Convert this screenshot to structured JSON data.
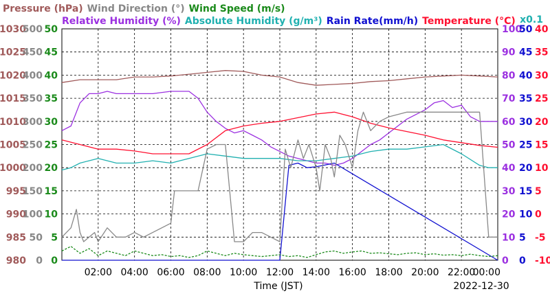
{
  "chart_data": {
    "type": "line",
    "title": "",
    "date_label": "2022-12-30",
    "xlabel": "Time (JST)",
    "x_ticks": [
      "02:00",
      "04:00",
      "06:00",
      "08:00",
      "10:00",
      "12:00",
      "14:00",
      "16:00",
      "18:00",
      "20:00",
      "22:00",
      "00:00"
    ],
    "x_range_hours": [
      0,
      24
    ],
    "grid": true,
    "legend_row1": [
      {
        "text": "Pressure (hPa)",
        "color": "#a05a5a"
      },
      {
        "text": "Wind Direction (°)",
        "color": "#888888"
      },
      {
        "text": "Wind Speed (m/s)",
        "color": "#1a8a1a"
      }
    ],
    "legend_row2": [
      {
        "text": "Relative Humidity (%)",
        "color": "#9b30e0"
      },
      {
        "text": "Absolute Humidity (g/m³)",
        "color": "#20b0b0"
      },
      {
        "text": "Rain Rate(mm/h)",
        "color": "#1010d0"
      },
      {
        "text": "Temperature (°C)",
        "color": "#ff1030"
      }
    ],
    "abs_humidity_scale_note": "x0.1",
    "axes": {
      "pressure": {
        "ticks": [
          "980",
          "985",
          "990",
          "995",
          "1000",
          "1005",
          "1010",
          "1015",
          "1020",
          "1025",
          "1030"
        ],
        "range": [
          980,
          1030
        ],
        "color": "#a05a5a"
      },
      "wind_direction": {
        "ticks": [
          "0",
          "50",
          "100",
          "150",
          "200",
          "250",
          "300",
          "350",
          "400",
          "450",
          "500"
        ],
        "range": [
          0,
          500
        ],
        "color": "#888888"
      },
      "wind_speed": {
        "ticks": [
          "0",
          "5",
          "10",
          "15",
          "20",
          "25",
          "30",
          "35",
          "40",
          "45",
          "50"
        ],
        "range": [
          0,
          50
        ],
        "color": "#1a8a1a"
      },
      "humidity": {
        "ticks": [
          "0",
          "10",
          "20",
          "30",
          "40",
          "50",
          "60",
          "70",
          "80",
          "90",
          "100"
        ],
        "range": [
          0,
          100
        ],
        "color": "#9b30e0"
      },
      "rain": {
        "ticks": [
          "0",
          "5",
          "10",
          "15",
          "20",
          "25",
          "30",
          "35",
          "40",
          "45",
          "50"
        ],
        "range": [
          0,
          50
        ],
        "color": "#1010d0"
      },
      "temperature": {
        "ticks": [
          "-10",
          "-5",
          "0",
          "5",
          "10",
          "15",
          "20",
          "25",
          "30",
          "35",
          "40"
        ],
        "range": [
          -10,
          40
        ],
        "color": "#ff1030"
      }
    },
    "series": [
      {
        "name": "Pressure (hPa)",
        "axis": "pressure",
        "color": "#a05a5a",
        "x": [
          0,
          1,
          2,
          3,
          4,
          5,
          6,
          7,
          8,
          9,
          10,
          11,
          12,
          13,
          14,
          15,
          16,
          17,
          18,
          19,
          20,
          21,
          22,
          23,
          24
        ],
        "y": [
          1018.4,
          1019,
          1019,
          1019,
          1019.6,
          1019.6,
          1019.8,
          1020.2,
          1020.6,
          1021,
          1020.8,
          1020,
          1019.6,
          1018.4,
          1017.8,
          1018,
          1018.2,
          1018.6,
          1018.8,
          1019.2,
          1019.6,
          1019.8,
          1020,
          1019.8,
          1019.6
        ]
      },
      {
        "name": "Relative Humidity (%)",
        "axis": "humidity",
        "color": "#9b30e0",
        "x": [
          0,
          0.5,
          1,
          1.5,
          2,
          2.5,
          3,
          4,
          5,
          6,
          7,
          7.5,
          8,
          8.5,
          9,
          9.5,
          10,
          10.5,
          11,
          11.5,
          12,
          12.5,
          13,
          13.5,
          14,
          14.5,
          15,
          15.5,
          16,
          16.5,
          17,
          17.5,
          18,
          18.5,
          19,
          19.5,
          20,
          20.5,
          21,
          21.5,
          22,
          22.5,
          23,
          23.5,
          24
        ],
        "y": [
          56,
          58,
          68,
          72,
          72,
          73,
          72,
          72,
          72,
          73,
          73,
          70,
          64,
          60,
          57,
          55,
          56,
          54,
          52,
          49,
          47,
          45,
          44,
          43,
          42,
          42,
          41,
          42,
          44,
          47,
          50,
          52,
          55,
          58,
          61,
          63,
          65,
          68,
          69,
          66,
          67,
          62,
          60,
          60,
          60
        ]
      },
      {
        "name": "Absolute Humidity (g/m³)",
        "axis": "humidity",
        "color": "#20b0b0",
        "x": [
          0,
          0.5,
          1,
          1.5,
          2,
          3,
          4,
          5,
          6,
          7,
          8,
          9,
          10,
          11,
          12,
          13,
          14,
          15,
          16,
          17,
          18,
          19,
          20,
          21,
          22,
          23,
          23.5,
          24
        ],
        "y": [
          39,
          40,
          42,
          43,
          44,
          42,
          42,
          43,
          42,
          44,
          46,
          45,
          44,
          44,
          44,
          43,
          43,
          44,
          45,
          47,
          48,
          48,
          49,
          50,
          46,
          41,
          40,
          40
        ]
      },
      {
        "name": "Rain Rate(mm/h)",
        "axis": "rain",
        "color": "#1010d0",
        "x": [
          0,
          12,
          12.5,
          13,
          13.5,
          14,
          14.5,
          15,
          24
        ],
        "y": [
          0,
          0,
          20.5,
          21,
          20,
          20.2,
          20.6,
          21,
          0
        ]
      },
      {
        "name": "Temperature (°C)",
        "axis": "temperature",
        "color": "#ff1030",
        "x": [
          0,
          1,
          2,
          3,
          4,
          5,
          6,
          7,
          8,
          9,
          10,
          11,
          12,
          13,
          14,
          15,
          16,
          17,
          18,
          19,
          20,
          21,
          22,
          23,
          24
        ],
        "y": [
          16,
          15,
          14,
          14,
          13.6,
          13,
          13,
          13,
          15,
          18,
          19,
          19.6,
          20,
          20.8,
          21.6,
          22,
          21,
          19.6,
          18.6,
          17.8,
          17,
          16,
          15.4,
          14.8,
          14.4
        ]
      },
      {
        "name": "Wind Direction (°)",
        "axis": "wind_direction",
        "color": "#888888",
        "x": [
          0,
          0.5,
          0.8,
          1,
          1.2,
          1.5,
          1.8,
          2,
          2.5,
          3,
          3.5,
          4,
          4.5,
          5,
          5.5,
          6,
          6.2,
          7,
          7.5,
          8,
          8.5,
          9,
          9.5,
          10,
          10.5,
          11,
          11.5,
          12,
          12.3,
          12.6,
          13,
          13.3,
          13.6,
          14,
          14.2,
          14.5,
          14.8,
          15,
          15.3,
          15.6,
          16,
          16.3,
          16.6,
          17,
          17.5,
          18,
          19,
          20,
          21,
          22,
          22.5,
          23,
          23.5,
          24
        ],
        "y": [
          50,
          70,
          110,
          60,
          40,
          50,
          60,
          40,
          70,
          50,
          50,
          60,
          50,
          60,
          70,
          80,
          150,
          150,
          150,
          240,
          250,
          250,
          40,
          40,
          60,
          60,
          50,
          40,
          240,
          200,
          260,
          220,
          250,
          200,
          150,
          250,
          220,
          180,
          270,
          250,
          200,
          280,
          320,
          280,
          300,
          310,
          320,
          320,
          320,
          320,
          320,
          320,
          50,
          50
        ]
      },
      {
        "name": "Wind Speed (m/s)",
        "axis": "wind_speed",
        "color": "#1a8a1a",
        "x": [
          0,
          0.5,
          1,
          1.5,
          2,
          2.5,
          3,
          3.5,
          4,
          4.5,
          5,
          5.5,
          6,
          6.5,
          7,
          7.5,
          8,
          8.5,
          9,
          9.5,
          10,
          10.5,
          11,
          11.5,
          12,
          12.5,
          13,
          13.5,
          14,
          14.5,
          15,
          15.5,
          16,
          16.5,
          17,
          17.5,
          18,
          18.5,
          19,
          19.5,
          20,
          20.5,
          21,
          21.5,
          22,
          22.5,
          23,
          23.5,
          24
        ],
        "y": [
          2,
          3,
          1.5,
          2.5,
          1,
          2,
          1.5,
          1,
          2,
          1.5,
          1,
          1.2,
          0.8,
          1,
          0.6,
          1,
          2,
          1.5,
          1,
          1.5,
          1.2,
          1,
          0.8,
          1,
          1.2,
          0.8,
          1,
          0.6,
          1.2,
          1.8,
          2,
          1.5,
          1.8,
          2,
          1.5,
          1.6,
          1.4,
          1.2,
          1.5,
          1.6,
          1.2,
          1.4,
          1.1,
          1.2,
          1,
          1.3,
          1,
          0.8,
          1
        ]
      }
    ]
  }
}
